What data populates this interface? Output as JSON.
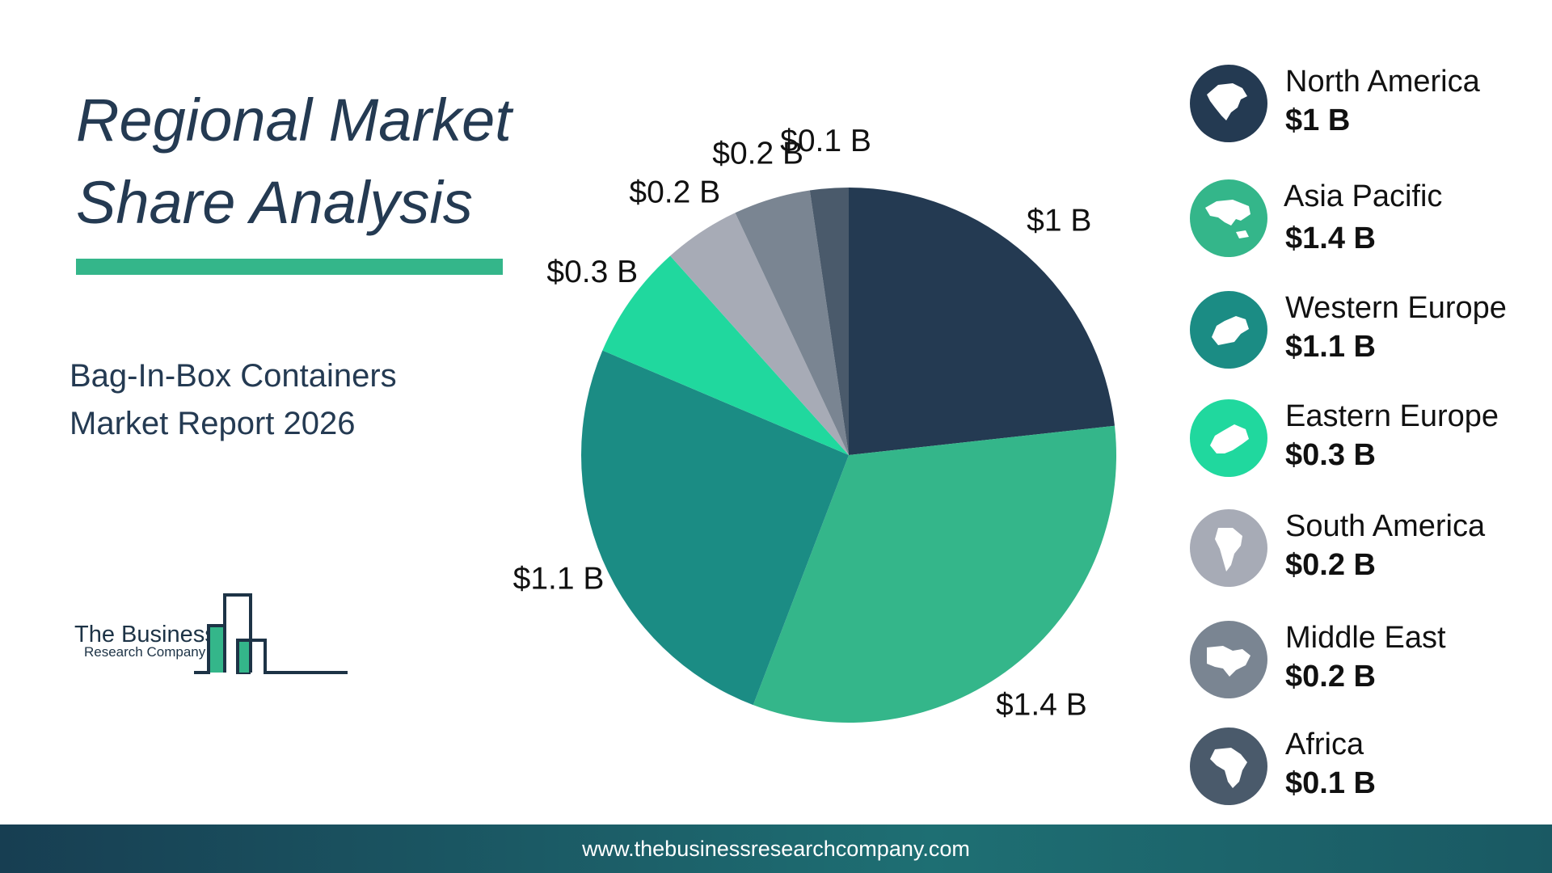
{
  "header": {
    "title_line1": "Regional Market",
    "title_line2": "Share Analysis",
    "subtitle_line1": "Bag-In-Box Containers",
    "subtitle_line2": "Market Report 2026"
  },
  "logo": {
    "line1": "The Business",
    "line2": "Research Company"
  },
  "footer": {
    "url": "www.thebusinessresearchcompany.com"
  },
  "colors": {
    "accent": "#34b68a",
    "navy": "#243a52"
  },
  "chart_data": {
    "type": "pie",
    "categories": [
      "North America",
      "Asia Pacific",
      "Western Europe",
      "Eastern Europe",
      "South America",
      "Middle East",
      "Africa"
    ],
    "values": [
      1,
      1.4,
      1.1,
      0.3,
      0.2,
      0.2,
      0.1
    ],
    "labels": [
      "$1 B",
      "$1.4 B",
      "$1.1 B",
      "$0.3 B",
      "$0.2 B",
      "$0.2 B",
      "$0.1 B"
    ],
    "colors": [
      "#243a52",
      "#34b68a",
      "#1b8c84",
      "#20d89e",
      "#a7abb6",
      "#7a8592",
      "#4a5a6b"
    ],
    "legend_position": "right",
    "start_angle": "12 o'clock, clockwise"
  },
  "legend": {
    "items": [
      {
        "name": "North America",
        "value": "$1 B",
        "icon": "north-america-icon",
        "color": "#243a52"
      },
      {
        "name": "Asia Pacific",
        "value": "$1.4 B",
        "icon": "asia-pacific-icon",
        "color": "#34b68a"
      },
      {
        "name": "Western Europe",
        "value": "$1.1 B",
        "icon": "western-europe-icon",
        "color": "#1b8c84"
      },
      {
        "name": "Eastern Europe",
        "value": "$0.3 B",
        "icon": "eastern-europe-icon",
        "color": "#20d89e"
      },
      {
        "name": "South America",
        "value": "$0.2 B",
        "icon": "south-america-icon",
        "color": "#a7abb6"
      },
      {
        "name": "Middle East",
        "value": "$0.2 B",
        "icon": "middle-east-icon",
        "color": "#7a8592"
      },
      {
        "name": "Africa",
        "value": "$0.1 B",
        "icon": "africa-icon",
        "color": "#4a5a6b"
      }
    ]
  }
}
